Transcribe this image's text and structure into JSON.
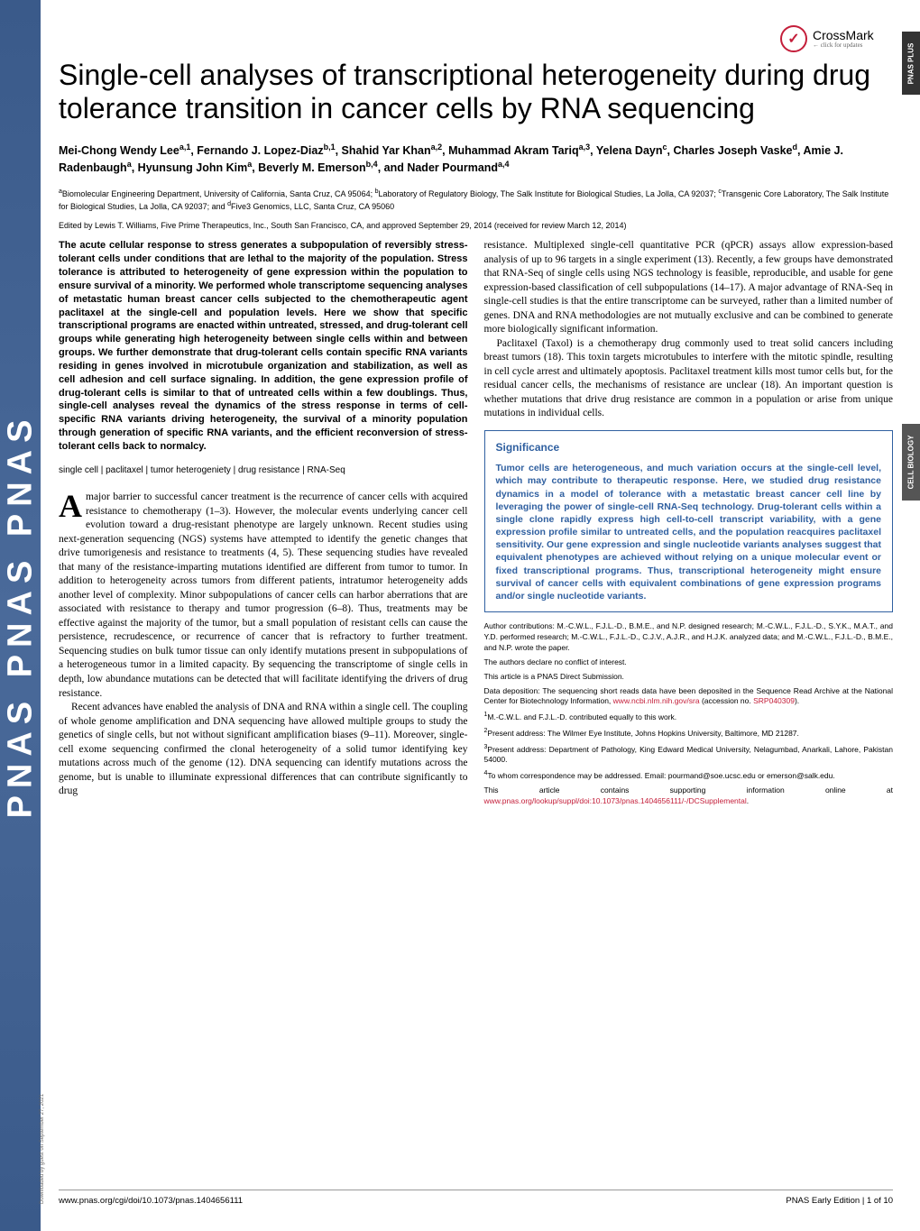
{
  "sideBanner": "PNAS   PNAS   PNAS",
  "rightTab1": "PNAS PLUS",
  "rightTab2": "CELL BIOLOGY",
  "crossmark": {
    "label": "CrossMark",
    "sub": "← click for updates",
    "glyph": "✓"
  },
  "title": "Single-cell analyses of transcriptional heterogeneity during drug tolerance transition in cancer cells by RNA sequencing",
  "authors": "Mei-Chong Wendy Lee<sup>a,1</sup>, Fernando J. Lopez-Diaz<sup>b,1</sup>, Shahid Yar Khan<sup>a,2</sup>, Muhammad Akram Tariq<sup>a,3</sup>, Yelena Dayn<sup>c</sup>, Charles Joseph Vaske<sup>d</sup>, Amie J. Radenbaugh<sup>a</sup>, Hyunsung John Kim<sup>a</sup>, Beverly M. Emerson<sup>b,4</sup>, and Nader Pourmand<sup>a,4</sup>",
  "affiliations": "<sup>a</sup>Biomolecular Engineering Department, University of California, Santa Cruz, CA 95064; <sup>b</sup>Laboratory of Regulatory Biology, The Salk Institute for Biological Studies, La Jolla, CA 92037; <sup>c</sup>Transgenic Core Laboratory, The Salk Institute for Biological Studies, La Jolla, CA 92037; and <sup>d</sup>Five3 Genomics, LLC, Santa Cruz, CA 95060",
  "edited": "Edited by Lewis T. Williams, Five Prime Therapeutics, Inc., South San Francisco, CA, and approved September 29, 2014 (received for review March 12, 2014)",
  "abstract": "The acute cellular response to stress generates a subpopulation of reversibly stress-tolerant cells under conditions that are lethal to the majority of the population. Stress tolerance is attributed to heterogeneity of gene expression within the population to ensure survival of a minority. We performed whole transcriptome sequencing analyses of metastatic human breast cancer cells subjected to the chemotherapeutic agent paclitaxel at the single-cell and population levels. Here we show that specific transcriptional programs are enacted within untreated, stressed, and drug-tolerant cell groups while generating high heterogeneity between single cells within and between groups. We further demonstrate that drug-tolerant cells contain specific RNA variants residing in genes involved in microtubule organization and stabilization, as well as cell adhesion and cell surface signaling. In addition, the gene expression profile of drug-tolerant cells is similar to that of untreated cells within a few doublings. Thus, single-cell analyses reveal the dynamics of the stress response in terms of cell-specific RNA variants driving heterogeneity, the survival of a minority population through generation of specific RNA variants, and the efficient reconversion of stress-tolerant cells back to normalcy.",
  "keywords": "single cell | paclitaxel | tumor heterogeniety | drug resistance | RNA-Seq",
  "dropcap": "A",
  "body1a": "major barrier to successful cancer treatment is the recurrence of cancer cells with acquired resistance to chemotherapy (1–3). However, the molecular events underlying cancer cell evolution toward a drug-resistant phenotype are largely unknown. Recent studies using next-generation sequencing (NGS) systems have attempted to identify the genetic changes that drive tumorigenesis and resistance to treatments (4, 5). These sequencing studies have revealed that many of the resistance-imparting mutations identified are different from tumor to tumor. In addition to heterogeneity across tumors from different patients, intratumor heterogeneity adds another level of complexity. Minor subpopulations of cancer cells can harbor aberrations that are associated with resistance to therapy and tumor progression (6–8). Thus, treatments may be effective against the majority of the tumor, but a small population of resistant cells can cause the persistence, recrudescence, or recurrence of cancer that is refractory to further treatment. Sequencing studies on bulk tumor tissue can only identify mutations present in subpopulations of a heterogeneous tumor in a limited capacity. By sequencing the transcriptome of single cells in depth, low abundance mutations can be detected that will facilitate identifying the drivers of drug resistance.",
  "body1b": "Recent advances have enabled the analysis of DNA and RNA within a single cell. The coupling of whole genome amplification and DNA sequencing have allowed multiple groups to study the genetics of single cells, but not without significant amplification biases (9–11). Moreover, single-cell exome sequencing confirmed the clonal heterogeneity of a solid tumor identifying key mutations across much of the genome (12). DNA sequencing can identify mutations across the genome, but is unable to illuminate expressional differences that can contribute significantly to drug",
  "body2a": "resistance. Multiplexed single-cell quantitative PCR (qPCR) assays allow expression-based analysis of up to 96 targets in a single experiment (13). Recently, a few groups have demonstrated that RNA-Seq of single cells using NGS technology is feasible, reproducible, and usable for gene expression-based classification of cell subpopulations (14–17). A major advantage of RNA-Seq in single-cell studies is that the entire transcriptome can be surveyed, rather than a limited number of genes. DNA and RNA methodologies are not mutually exclusive and can be combined to generate more biologically significant information.",
  "body2b": "Paclitaxel (Taxol) is a chemotherapy drug commonly used to treat solid cancers including breast tumors (18). This toxin targets microtubules to interfere with the mitotic spindle, resulting in cell cycle arrest and ultimately apoptosis. Paclitaxel treatment kills most tumor cells but, for the residual cancer cells, the mechanisms of resistance are unclear (18). An important question is whether mutations that drive drug resistance are common in a population or arise from unique mutations in individual cells.",
  "sig": {
    "title": "Significance",
    "text": "Tumor cells are heterogeneous, and much variation occurs at the single-cell level, which may contribute to therapeutic response. Here, we studied drug resistance dynamics in a model of tolerance with a metastatic breast cancer cell line by leveraging the power of single-cell RNA-Seq technology. Drug-tolerant cells within a single clone rapidly express high cell-to-cell transcript variability, with a gene expression profile similar to untreated cells, and the population reacquires paclitaxel sensitivity. Our gene expression and single nucleotide variants analyses suggest that equivalent phenotypes are achieved without relying on a unique molecular event or fixed transcriptional programs. Thus, transcriptional heterogeneity might ensure survival of cancer cells with equivalent combinations of gene expression programs and/or single nucleotide variants."
  },
  "footnotes": {
    "contrib": "Author contributions: M.-C.W.L., F.J.L.-D., B.M.E., and N.P. designed research; M.-C.W.L., F.J.L.-D., S.Y.K., M.A.T., and Y.D. performed research; M.-C.W.L., F.J.L.-D., C.J.V., A.J.R., and H.J.K. analyzed data; and M.-C.W.L., F.J.L.-D., B.M.E., and N.P. wrote the paper.",
    "conflict": "The authors declare no conflict of interest.",
    "direct": "This article is a PNAS Direct Submission.",
    "data": "Data deposition: The sequencing short reads data have been deposited in the Sequence Read Archive at the National Center for Biotechnology Information, ",
    "dataLink": "www.ncbi.nlm.nih.gov/sra",
    "dataAcc": " (accession no. ",
    "dataAccLink": "SRP040309",
    "dataEnd": ").",
    "n1": "<sup>1</sup>M.-C.W.L. and F.J.L.-D. contributed equally to this work.",
    "n2": "<sup>2</sup>Present address: The Wilmer Eye Institute, Johns Hopkins University, Baltimore, MD 21287.",
    "n3": "<sup>3</sup>Present address: Department of Pathology, King Edward Medical University, Nelagumbad, Anarkali, Lahore, Pakistan 54000.",
    "n4": "<sup>4</sup>To whom correspondence may be addressed. Email: pourmand@soe.ucsc.edu or emerson@salk.edu.",
    "supp": "This article contains supporting information online at ",
    "suppLink": "www.pnas.org/lookup/suppl/doi:10.1073/pnas.1404656111/-/DCSupplemental",
    "suppEnd": "."
  },
  "footer": {
    "left": "www.pnas.org/cgi/doi/10.1073/pnas.1404656111",
    "right": "PNAS Early Edition | 1 of 10"
  },
  "download": "Downloaded by guest on September 27, 2021"
}
